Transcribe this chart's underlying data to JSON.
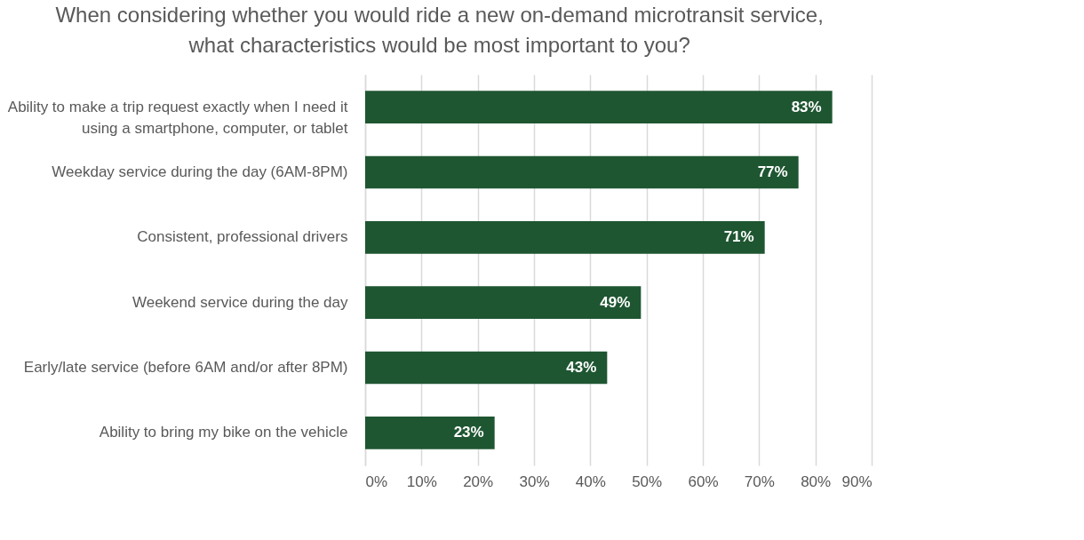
{
  "chart_data": {
    "type": "bar",
    "orientation": "horizontal",
    "title": "When considering whether you would ride a new on-demand microtransit service, what characteristics would be most important to you?",
    "categories": [
      "Ability to make a trip request exactly when I need it using a smartphone, computer, or tablet",
      "Weekday service during the day (6AM-8PM)",
      "Consistent, professional drivers",
      "Weekend service during the day",
      "Early/late service (before 6AM and/or after 8PM)",
      "Ability to bring my bike on the vehicle"
    ],
    "values": [
      83,
      77,
      71,
      49,
      43,
      23
    ],
    "value_labels": [
      "83%",
      "77%",
      "71%",
      "49%",
      "43%",
      "23%"
    ],
    "color": "#1e5631",
    "xlim": [
      0,
      90
    ],
    "xticks": [
      {
        "value": 0,
        "label": "0%"
      },
      {
        "value": 10,
        "label": "10%"
      },
      {
        "value": 20,
        "label": "20%"
      },
      {
        "value": 30,
        "label": "30%"
      },
      {
        "value": 40,
        "label": "40%"
      },
      {
        "value": 50,
        "label": "50%"
      },
      {
        "value": 60,
        "label": "60%"
      },
      {
        "value": 70,
        "label": "70%"
      },
      {
        "value": 80,
        "label": "80%"
      },
      {
        "value": 90,
        "label": "90%"
      }
    ],
    "grid": "x"
  }
}
